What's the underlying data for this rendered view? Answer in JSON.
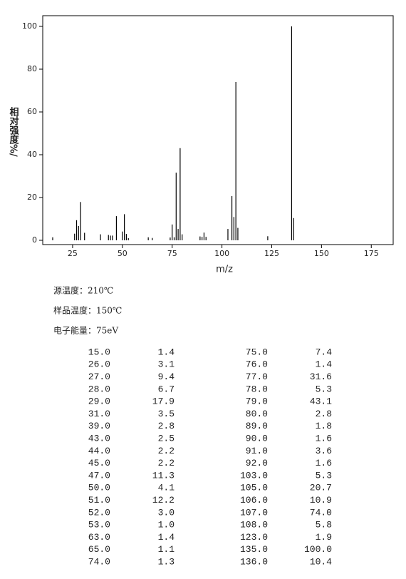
{
  "chart_data": {
    "type": "bar",
    "x_label": "m/z",
    "y_label": "相对强度%/",
    "x": [
      15,
      26,
      27,
      28,
      29,
      31,
      39,
      43,
      44,
      45,
      47,
      50,
      51,
      52,
      53,
      63,
      65,
      74,
      75,
      76,
      77,
      78,
      79,
      80,
      89,
      90,
      91,
      92,
      103,
      105,
      106,
      107,
      108,
      123,
      135,
      136
    ],
    "values": [
      1.4,
      3.1,
      9.4,
      6.7,
      17.9,
      3.5,
      2.8,
      2.5,
      2.2,
      2.2,
      11.3,
      4.1,
      12.2,
      3.0,
      1.0,
      1.4,
      1.1,
      1.3,
      7.4,
      1.4,
      31.6,
      5.3,
      43.1,
      2.8,
      1.8,
      1.6,
      3.6,
      1.6,
      5.3,
      20.7,
      10.9,
      74.0,
      5.8,
      1.9,
      100.0,
      10.4
    ],
    "color": "#000000",
    "xlim": [
      10,
      186
    ],
    "xticks": [
      25,
      50,
      75,
      100,
      125,
      150,
      175
    ],
    "ylim": [
      -2,
      105
    ],
    "yticks": [
      0,
      20,
      40,
      60,
      80,
      100
    ]
  },
  "info": [
    "源温度：210℃",
    "样品温度：150℃",
    "电子能量：75eV"
  ],
  "table": {
    "rows": [
      [
        "15.0",
        "1.4",
        "75.0",
        "7.4"
      ],
      [
        "26.0",
        "3.1",
        "76.0",
        "1.4"
      ],
      [
        "27.0",
        "9.4",
        "77.0",
        "31.6"
      ],
      [
        "28.0",
        "6.7",
        "78.0",
        "5.3"
      ],
      [
        "29.0",
        "17.9",
        "79.0",
        "43.1"
      ],
      [
        "31.0",
        "3.5",
        "80.0",
        "2.8"
      ],
      [
        "39.0",
        "2.8",
        "89.0",
        "1.8"
      ],
      [
        "43.0",
        "2.5",
        "90.0",
        "1.6"
      ],
      [
        "44.0",
        "2.2",
        "91.0",
        "3.6"
      ],
      [
        "45.0",
        "2.2",
        "92.0",
        "1.6"
      ],
      [
        "47.0",
        "11.3",
        "103.0",
        "5.3"
      ],
      [
        "50.0",
        "4.1",
        "105.0",
        "20.7"
      ],
      [
        "51.0",
        "12.2",
        "106.0",
        "10.9"
      ],
      [
        "52.0",
        "3.0",
        "107.0",
        "74.0"
      ],
      [
        "53.0",
        "1.0",
        "108.0",
        "5.8"
      ],
      [
        "63.0",
        "1.4",
        "123.0",
        "1.9"
      ],
      [
        "65.0",
        "1.1",
        "135.0",
        "100.0"
      ],
      [
        "74.0",
        "1.3",
        "136.0",
        "10.4"
      ]
    ]
  }
}
